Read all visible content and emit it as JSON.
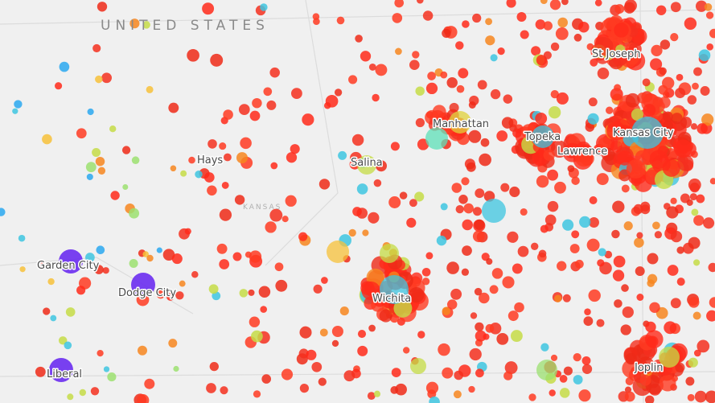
{
  "map": {
    "country_label": "UNITED STATES",
    "state_label": "KANSAS",
    "cities": [
      "St Joseph",
      "Manhattan",
      "Topeka",
      "Kansas City",
      "Lawrence",
      "Hays",
      "Salina",
      "Garden City",
      "Dodge City",
      "Wichita",
      "Liberal",
      "Joplin"
    ]
  }
}
